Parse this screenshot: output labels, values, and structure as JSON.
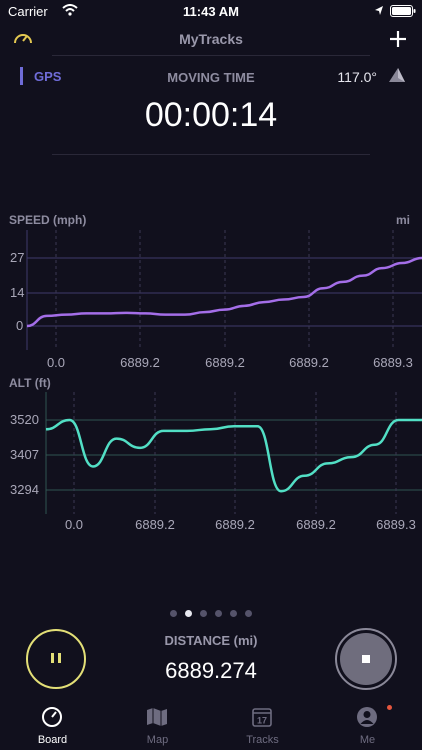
{
  "status_bar": {
    "carrier": "Carrier",
    "time": "11:43 AM"
  },
  "header": {
    "title": "MyTracks"
  },
  "summary": {
    "gps_label": "GPS",
    "moving_time_label": "MOVING TIME",
    "heading": "117.0°",
    "moving_time": "00:00:14"
  },
  "speed_chart": {
    "label": "SPEED (mph)",
    "unit": "mi",
    "y_ticks": [
      "27",
      "14",
      "0"
    ],
    "x_ticks": [
      "0.0",
      "6889.2",
      "6889.2",
      "6889.2",
      "6889.3"
    ]
  },
  "alt_chart": {
    "label": "ALT (ft)",
    "y_ticks": [
      "3520",
      "3407",
      "3294"
    ],
    "x_ticks": [
      "0.0",
      "6889.2",
      "6889.2",
      "6889.2",
      "6889.3"
    ]
  },
  "chart_data": [
    {
      "type": "line",
      "title": "SPEED (mph)",
      "ylabel": "SPEED (mph)",
      "xlabel": "mi",
      "ylim": [
        0,
        27
      ],
      "series": [
        {
          "values": [
            0,
            4,
            4.5,
            5,
            5,
            5.2,
            5,
            4.5,
            4.5,
            5.5,
            6.5,
            8,
            9.5,
            10.5,
            11.5,
            15,
            17.5,
            20,
            23,
            25,
            27
          ]
        }
      ],
      "color": "#a46ee8"
    },
    {
      "type": "line",
      "title": "ALT (ft)",
      "ylabel": "ALT (ft)",
      "xlabel": "mi",
      "ylim": [
        3294,
        3520
      ],
      "series": [
        {
          "values": [
            3490,
            3520,
            3370,
            3460,
            3430,
            3485,
            3485,
            3490,
            3500,
            3500,
            3290,
            3340,
            3380,
            3400,
            3440,
            3520,
            3520
          ]
        }
      ],
      "color": "#52dfc5"
    }
  ],
  "pager": {
    "count": 6,
    "active": 1
  },
  "bottom": {
    "distance_label": "DISTANCE (mi)",
    "distance_value": "6889.274"
  },
  "tabs": [
    {
      "label": "Board"
    },
    {
      "label": "Map"
    },
    {
      "label": "Tracks"
    },
    {
      "label": "Me"
    }
  ],
  "colors": {
    "accent": "#6f6cd8",
    "speed_line": "#a46ee8",
    "alt_line": "#52dfc5",
    "pause_ring": "#e3df77"
  }
}
